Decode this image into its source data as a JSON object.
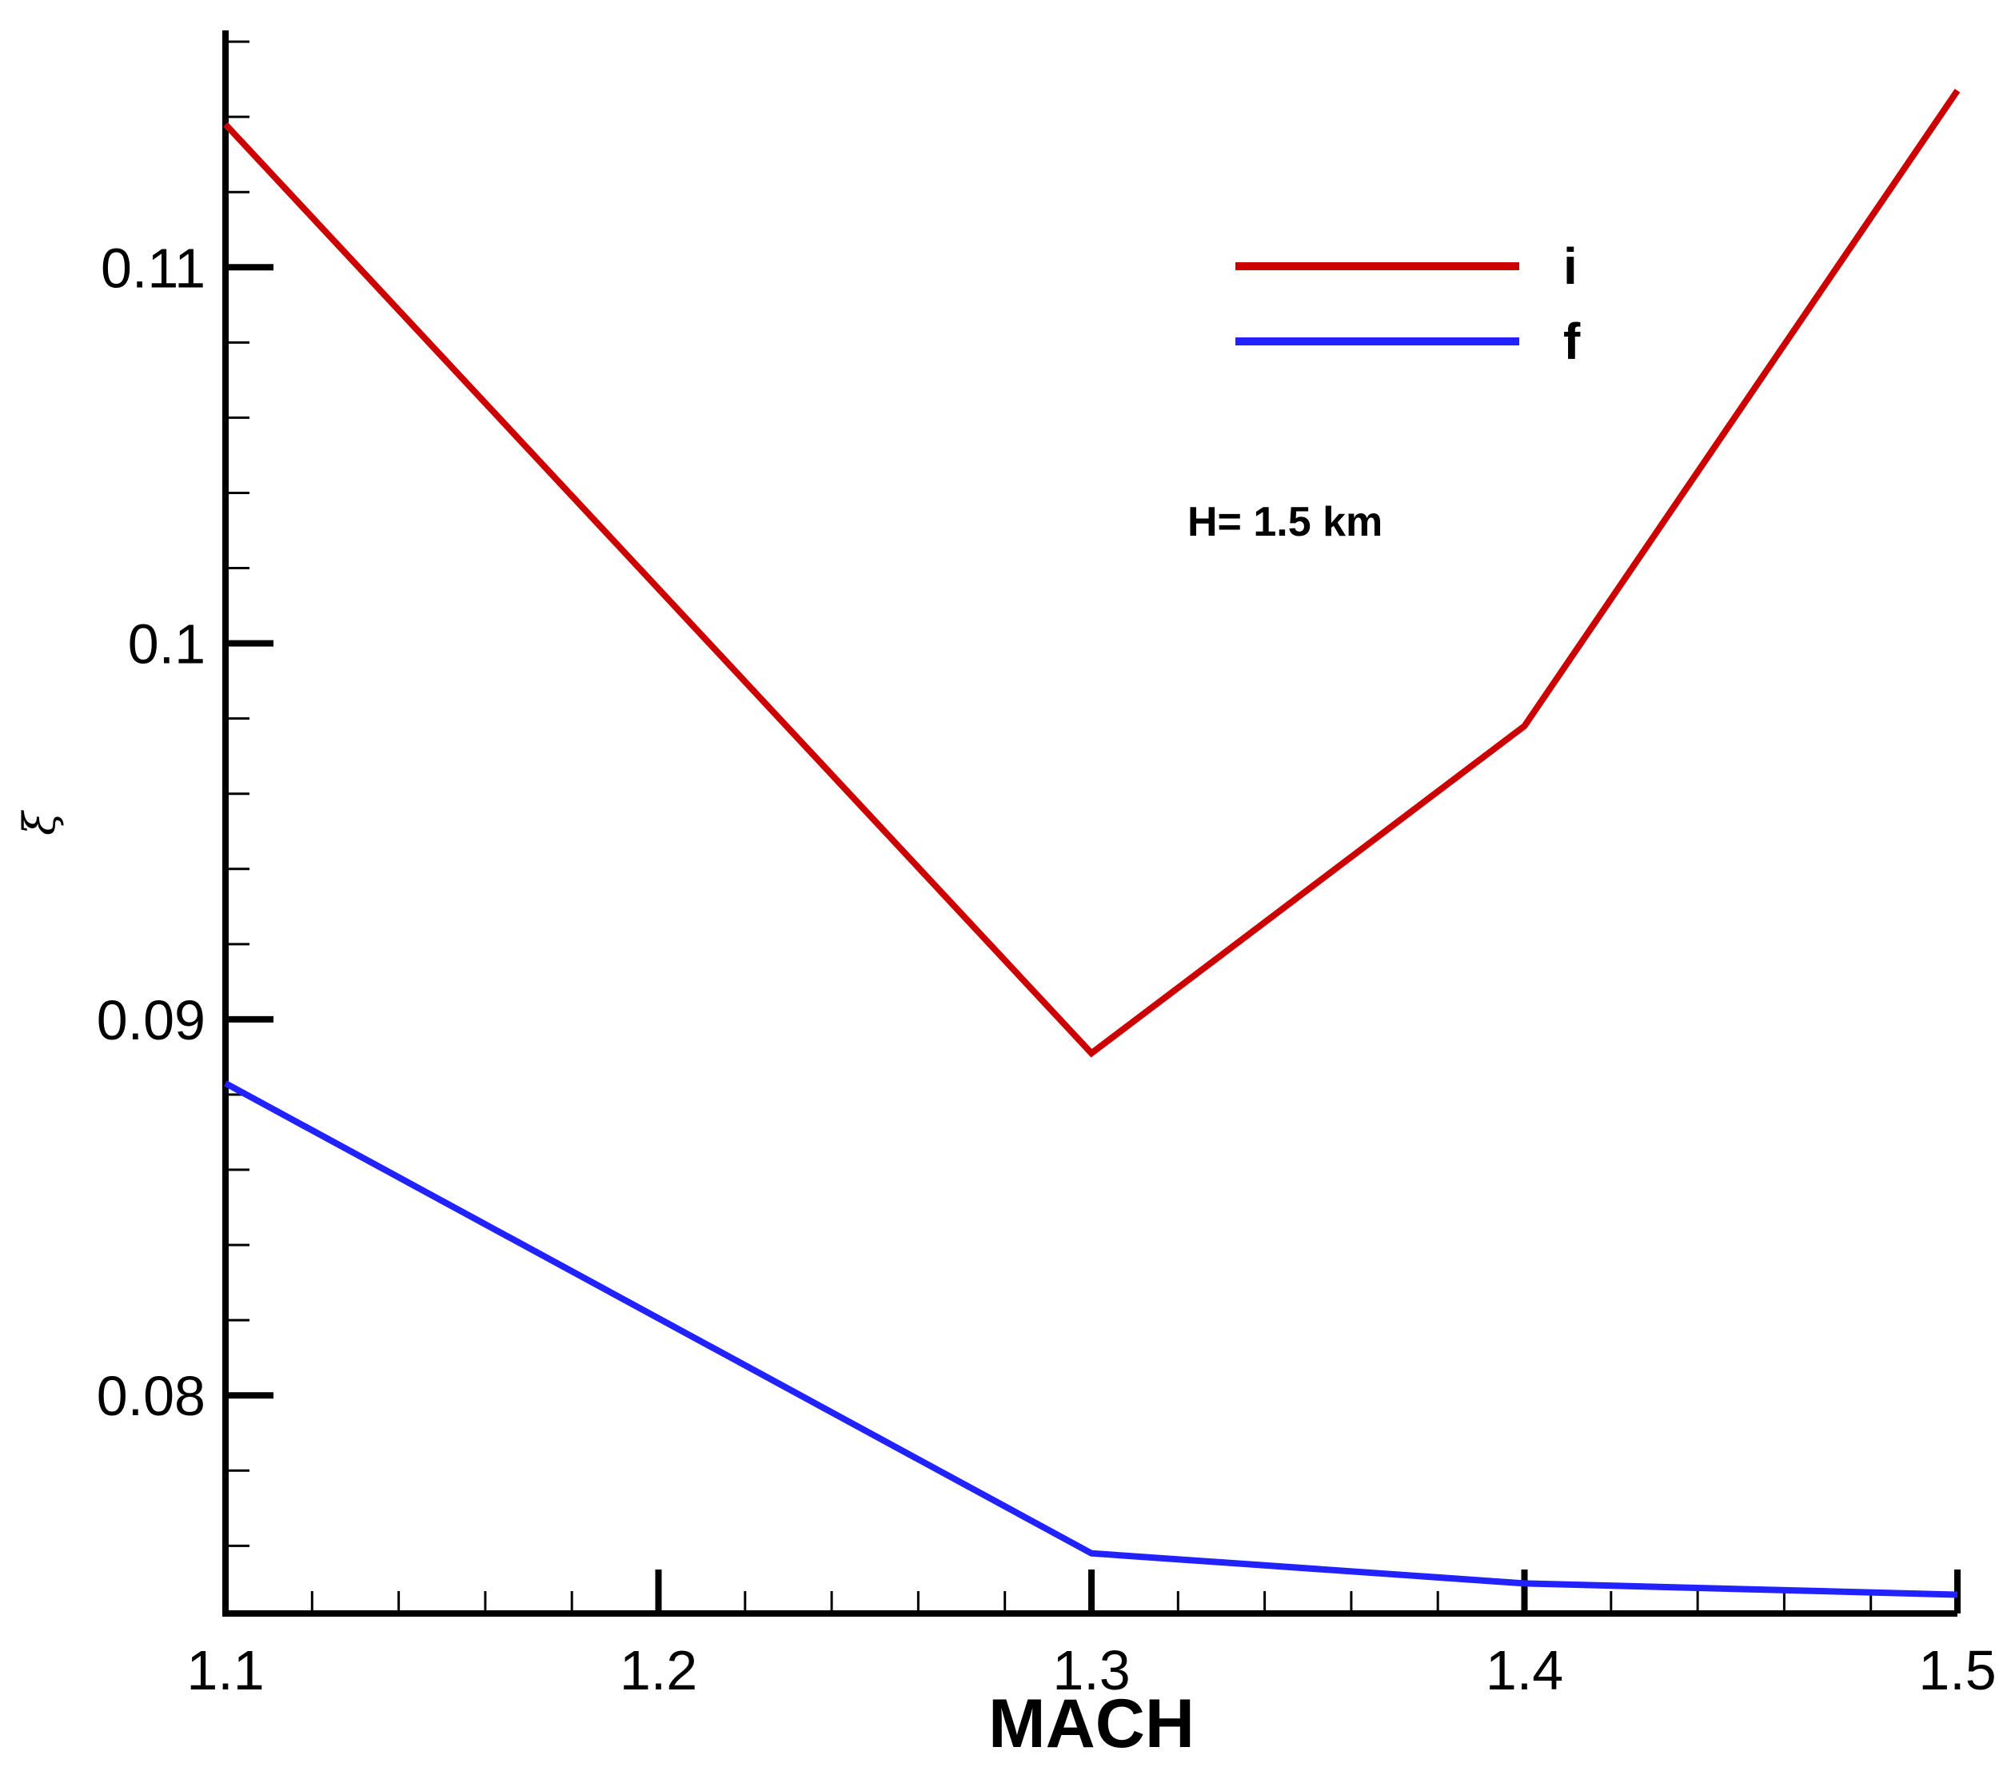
{
  "chart_data": {
    "type": "line",
    "xlabel": "MACH",
    "ylabel": "ξ",
    "xlim": [
      1.1,
      1.5
    ],
    "ylim": [
      0.0742,
      0.1163
    ],
    "x_ticks": [
      "1.1",
      "1.2",
      "1.3",
      "1.4",
      "1.5"
    ],
    "y_ticks": [
      "0.08",
      "0.09",
      "0.1",
      "0.11"
    ],
    "x_tick_values": [
      1.1,
      1.2,
      1.3,
      1.4,
      1.5
    ],
    "y_tick_values": [
      0.08,
      0.09,
      0.1,
      0.11
    ],
    "x": [
      1.1,
      1.3,
      1.4,
      1.5
    ],
    "series": [
      {
        "name": "i",
        "color": "#cc0000",
        "values": [
          0.1138,
          0.0891,
          0.0978,
          0.1147
        ]
      },
      {
        "name": "f",
        "color": "#2222ff",
        "values": [
          0.0883,
          0.0758,
          0.075,
          0.0747
        ]
      }
    ],
    "annotation": "H= 1.5 km",
    "legend_position": "top-right",
    "grid": false
  }
}
